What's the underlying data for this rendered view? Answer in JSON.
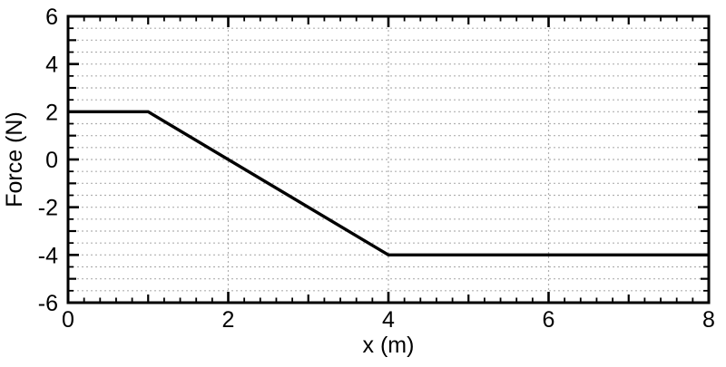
{
  "chart_data": {
    "type": "line",
    "title": "",
    "xlabel": "x (m)",
    "ylabel": "Force (N)",
    "xlim": [
      0,
      8
    ],
    "ylim": [
      -6,
      6
    ],
    "x_major_ticks": [
      0,
      2,
      4,
      6,
      8
    ],
    "x_medium_ticks": [
      1,
      3,
      5,
      7
    ],
    "x_minor_step": 0.2,
    "y_major_ticks": [
      -6,
      -4,
      -2,
      0,
      2,
      4,
      6
    ],
    "y_medium_ticks": [
      -5,
      -3,
      -1,
      1,
      3,
      5
    ],
    "y_minor_step": 0.5,
    "grid": {
      "on": true,
      "style": "dotted",
      "h_step": 0.5,
      "v_lines": [
        2,
        4,
        6
      ]
    },
    "legend": "none",
    "series": [
      {
        "name": "force",
        "color": "#000000",
        "points": [
          [
            0,
            2
          ],
          [
            1,
            2
          ],
          [
            4,
            -4
          ],
          [
            8,
            -4
          ]
        ]
      }
    ],
    "colors": {
      "axis": "#000000",
      "grid": "#b0b0b0",
      "background": "#ffffff"
    }
  }
}
